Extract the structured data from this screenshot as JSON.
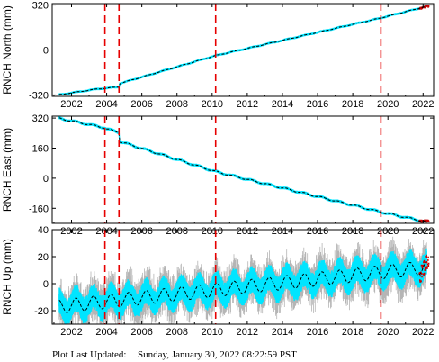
{
  "footer": {
    "label": "Plot Last Updated:",
    "timestamp": "Sunday, January 30, 2022 08:22:59 PST"
  },
  "colors": {
    "errorbar": "#b5b5b5",
    "observation": "#00e5ff",
    "model": "#000000",
    "event_line": "#e60000",
    "recent_points": "#cc0000"
  },
  "chart_data": [
    {
      "type": "scatter",
      "ylabel": "RNCH North (mm)",
      "xlim": [
        2000.9,
        2022.6
      ],
      "ylim": [
        -330,
        330
      ],
      "xticks": [
        2002,
        2004,
        2006,
        2008,
        2010,
        2012,
        2014,
        2016,
        2018,
        2020,
        2022
      ],
      "yticks": [
        -320,
        0,
        320
      ],
      "event_lines": [
        2003.9,
        2004.7,
        2010.2,
        2019.6
      ],
      "model": {
        "x": [
          2001.3,
          2003.5,
          2004.0,
          2004.7,
          2004.75,
          2010.2,
          2019.6,
          2022.2
        ],
        "y": [
          -318,
          -277,
          -272,
          -262,
          -238,
          -40,
          228,
          310
        ]
      },
      "obs_band_mm": 8,
      "seasonal_amplitude_mm": 2
    },
    {
      "type": "scatter",
      "ylabel": "RNCH East (mm)",
      "xlim": [
        2000.9,
        2022.6
      ],
      "ylim": [
        -240,
        330
      ],
      "xticks": [
        2002,
        2004,
        2006,
        2008,
        2010,
        2012,
        2014,
        2016,
        2018,
        2020,
        2022
      ],
      "yticks": [
        -160,
        0,
        160,
        320
      ],
      "event_lines": [
        2003.9,
        2004.7,
        2010.2,
        2019.6
      ],
      "model": {
        "x": [
          2001.3,
          2003.9,
          2004.0,
          2004.7,
          2004.75,
          2010.2,
          2019.6,
          2022.2
        ],
        "y": [
          318,
          268,
          262,
          244,
          195,
          35,
          -180,
          -232
        ]
      },
      "obs_band_mm": 7,
      "seasonal_amplitude_mm": 4
    },
    {
      "type": "scatter",
      "ylabel": "RNCH Up (mm)",
      "xlim": [
        2000.9,
        2022.6
      ],
      "ylim": [
        -30,
        40
      ],
      "xticks": [
        2002,
        2004,
        2006,
        2008,
        2010,
        2012,
        2014,
        2016,
        2018,
        2020,
        2022
      ],
      "yticks": [
        -20,
        0,
        20,
        40
      ],
      "event_lines": [
        2003.9,
        2004.7,
        2010.2,
        2019.6
      ],
      "model": {
        "x": [
          2001.3,
          2022.2
        ],
        "y": [
          -17,
          12
        ]
      },
      "obs_band_mm": 9,
      "errorbar_half_mm": 12,
      "seasonal_amplitude_mm": 5
    }
  ]
}
